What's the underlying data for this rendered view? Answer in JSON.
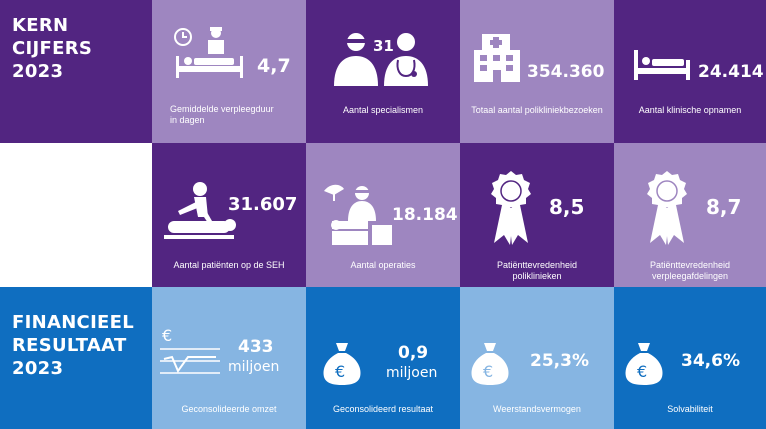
{
  "colors": {
    "dark_purple": "#522581",
    "light_purple": "#9E86C0",
    "mid_blue": "#0F6EC0",
    "light_blue": "#86B5E2",
    "white": "#FFFFFF"
  },
  "kern": {
    "heading_line1": "KERN",
    "heading_line2": "CIJFERS",
    "heading_line3": "2023"
  },
  "financieel": {
    "heading_line1": "FINANCIEEL",
    "heading_line2": "RESULTAAT",
    "heading_line3": "2023"
  },
  "stats": [
    {
      "value": "4,7",
      "label_line1": "Gemiddelde verpleegduur",
      "label_line2": "in dagen",
      "icon": "hospital-bed-clock-icon"
    },
    {
      "value": "31",
      "label_line1": "Aantal specialismen",
      "label_line2": "",
      "icon": "doctors-icon"
    },
    {
      "value": "354.360",
      "label_line1": "Totaal aantal polikliniekbezoeken",
      "label_line2": "",
      "icon": "hospital-building-icon"
    },
    {
      "value": "24.414",
      "label_line1": "Aantal klinische opnamen",
      "label_line2": "",
      "icon": "bed-icon"
    },
    {
      "value": "31.607",
      "label_line1": "Aantal patiënten op de SEH",
      "label_line2": "",
      "icon": "emergency-care-icon"
    },
    {
      "value": "18.184",
      "label_line1": "Aantal operaties",
      "label_line2": "",
      "icon": "surgery-icon"
    },
    {
      "value": "8,5",
      "label_line1": "Patiënttevredenheid",
      "label_line2": "poliklinieken",
      "icon": "award-ribbon-icon"
    },
    {
      "value": "8,7",
      "label_line1": "Patiënttevredenheid",
      "label_line2": "verpleegafdelingen",
      "icon": "award-ribbon-icon"
    }
  ],
  "finance": [
    {
      "value": "433",
      "unit": "miljoen",
      "label": "Geconsolideerde omzet",
      "icon": "euro-chart-icon"
    },
    {
      "value": "0,9",
      "unit": "miljoen",
      "label": "Geconsolideerd resultaat",
      "icon": "money-bag-icon"
    },
    {
      "value": "25,3%",
      "unit": "",
      "label": "Weerstandsvermogen",
      "icon": "money-bag-icon"
    },
    {
      "value": "34,6%",
      "unit": "",
      "label": "Solvabiliteit",
      "icon": "money-bag-icon"
    }
  ]
}
